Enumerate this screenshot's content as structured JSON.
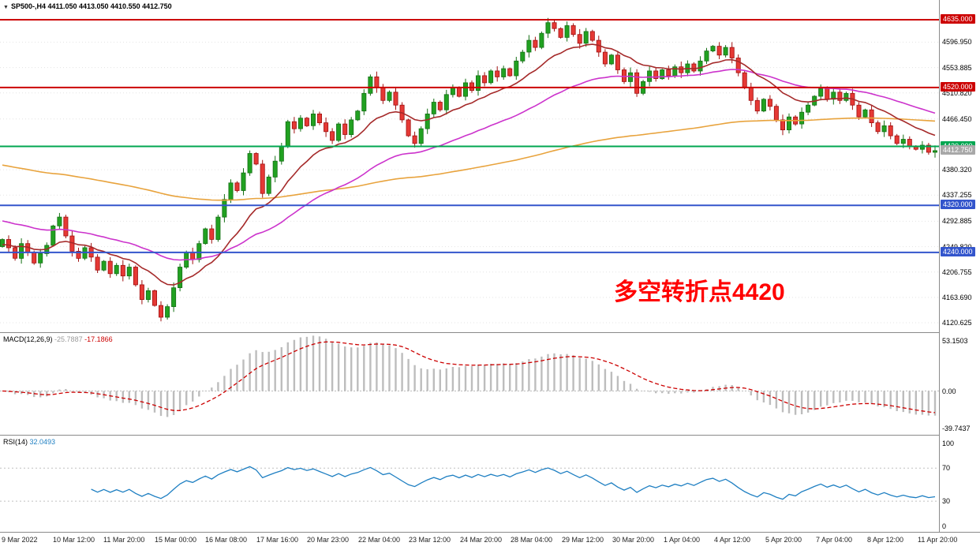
{
  "header": {
    "symbol_line": "SP500-,H4 4411.050 4413.050 4410.550 4412.750"
  },
  "annotation": {
    "text": "多空转折点4420",
    "color": "#ff0000"
  },
  "chart_data": {
    "type": "candlestick",
    "symbol": "SP500-",
    "timeframe": "H4",
    "ohlc_display": {
      "open": "4411.050",
      "high": "4413.050",
      "low": "4410.550",
      "close": "4412.750"
    },
    "current_price": 4412.75,
    "price_axis": {
      "max": 4635.0,
      "min": 4120.625,
      "plain_ticks": [
        4596.95,
        4553.885,
        4510.82,
        4466.45,
        4380.32,
        4337.255,
        4292.885,
        4249.82,
        4206.755,
        4163.69,
        4120.625
      ],
      "badges": [
        {
          "value": 4635.0,
          "label": "4635.000",
          "bg": "#cc0000",
          "fg": "#ffffff"
        },
        {
          "value": 4520.0,
          "label": "4520.000",
          "bg": "#cc0000",
          "fg": "#ffffff"
        },
        {
          "value": 4420.0,
          "label": "4420.000",
          "bg": "#00a651",
          "fg": "#ffffff"
        },
        {
          "value": 4412.75,
          "label": "4412.750",
          "bg": "#a8a8a8",
          "fg": "#ffffff"
        },
        {
          "value": 4320.0,
          "label": "4320.000",
          "bg": "#3355cc",
          "fg": "#ffffff"
        },
        {
          "value": 4240.0,
          "label": "4240.000",
          "bg": "#3355cc",
          "fg": "#ffffff"
        }
      ]
    },
    "levels": [
      {
        "price": 4635.0,
        "color": "#cc0000"
      },
      {
        "price": 4520.0,
        "color": "#cc0000"
      },
      {
        "price": 4420.0,
        "color": "#00a651"
      },
      {
        "price": 4320.0,
        "color": "#3355cc"
      },
      {
        "price": 4240.0,
        "color": "#3355cc"
      }
    ],
    "moving_averages": [
      {
        "name": "ma-slow",
        "color": "#e8a33d",
        "period": 150,
        "seed": 4390
      },
      {
        "name": "ma-medium",
        "color": "#cc33cc",
        "period": 40,
        "seed": 4295
      },
      {
        "name": "ma-fast",
        "color": "#a52a2a",
        "period": 14,
        "seed": 4252
      }
    ],
    "closes": [
      4262,
      4248,
      4230,
      4255,
      4240,
      4222,
      4238,
      4252,
      4285,
      4300,
      4268,
      4242,
      4230,
      4248,
      4232,
      4210,
      4225,
      4204,
      4218,
      4200,
      4215,
      4185,
      4160,
      4175,
      4150,
      4130,
      4148,
      4180,
      4215,
      4240,
      4228,
      4255,
      4280,
      4262,
      4300,
      4330,
      4358,
      4345,
      4375,
      4408,
      4390,
      4340,
      4368,
      4395,
      4420,
      4462,
      4450,
      4468,
      4455,
      4475,
      4460,
      4445,
      4430,
      4458,
      4440,
      4465,
      4480,
      4510,
      4538,
      4520,
      4498,
      4512,
      4490,
      4465,
      4438,
      4425,
      4450,
      4475,
      4495,
      4482,
      4508,
      4520,
      4505,
      4528,
      4515,
      4540,
      4528,
      4548,
      4538,
      4552,
      4540,
      4565,
      4580,
      4600,
      4588,
      4612,
      4630,
      4620,
      4605,
      4625,
      4610,
      4595,
      4615,
      4600,
      4580,
      4560,
      4575,
      4550,
      4530,
      4545,
      4510,
      4530,
      4548,
      4535,
      4550,
      4540,
      4555,
      4545,
      4560,
      4548,
      4565,
      4582,
      4590,
      4575,
      4588,
      4570,
      4545,
      4520,
      4498,
      4480,
      4500,
      4488,
      4465,
      4448,
      4470,
      4458,
      4478,
      4490,
      4505,
      4518,
      4500,
      4512,
      4498,
      4510,
      4490,
      4470,
      4482,
      4460,
      4445,
      4455,
      4438,
      4425,
      4432,
      4420,
      4415,
      4422,
      4410,
      4412.75
    ],
    "time_labels": [
      "9 Mar 2022",
      "10 Mar 12:00",
      "11 Mar 20:00",
      "15 Mar 00:00",
      "16 Mar 08:00",
      "17 Mar 16:00",
      "20 Mar 23:00",
      "22 Mar 04:00",
      "23 Mar 12:00",
      "24 Mar 20:00",
      "28 Mar 04:00",
      "29 Mar 12:00",
      "30 Mar 20:00",
      "1 Apr 04:00",
      "4 Apr 12:00",
      "5 Apr 20:00",
      "7 Apr 04:00",
      "8 Apr 12:00",
      "11 Apr 20:00"
    ],
    "macd": {
      "label": "MACD(12,26,9)",
      "value_main": "-25.7887",
      "value_signal": "-17.1866",
      "params": [
        12,
        26,
        9
      ],
      "axis_ticks": [
        {
          "value": 53.1503,
          "label": "53.1503"
        },
        {
          "value": 0,
          "label": "0.00"
        },
        {
          "value": -39.7437,
          "label": "-39.7437"
        }
      ],
      "histogram_color": "#bdbdbd",
      "signal_color": "#cc0000"
    },
    "rsi": {
      "label": "RSI(14)",
      "value": "32.0493",
      "period": 14,
      "axis_ticks": [
        100,
        70,
        30,
        0
      ],
      "levels": [
        70,
        30
      ],
      "line_color": "#1e7fc2"
    },
    "colors": {
      "candle_up": "#21a121",
      "candle_up_border": "#157015",
      "candle_down": "#e53935",
      "candle_down_border": "#a01010"
    }
  }
}
